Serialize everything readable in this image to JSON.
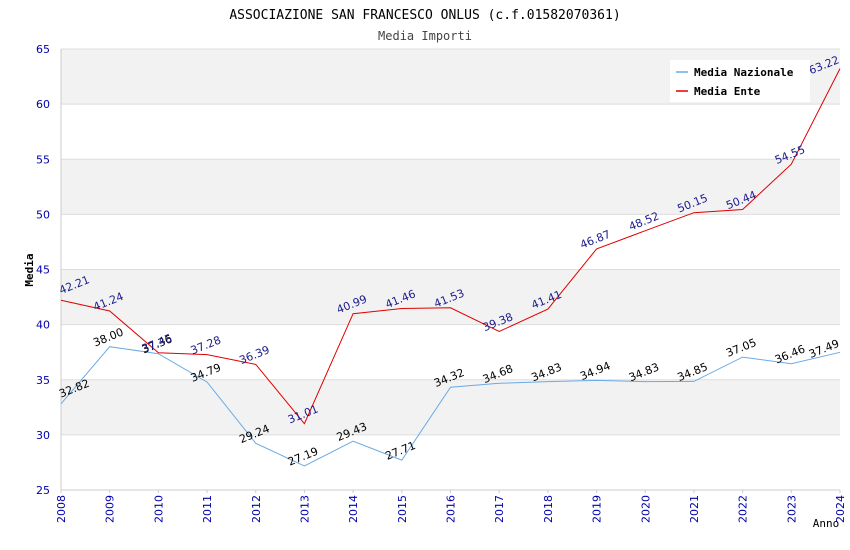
{
  "chart_data": {
    "type": "line",
    "title": "ASSOCIAZIONE SAN FRANCESCO ONLUS (c.f.01582070361)",
    "subtitle": "Media Importi",
    "ylabel": "Media",
    "xlabel": "Anno",
    "ylim": [
      25,
      65
    ],
    "yticks": [
      25,
      30,
      35,
      40,
      45,
      50,
      55,
      60,
      65
    ],
    "categories": [
      "2008",
      "2009",
      "2010",
      "2011",
      "2012",
      "2013",
      "2014",
      "2015",
      "2016",
      "2017",
      "2018",
      "2019",
      "2020",
      "2021",
      "2022",
      "2023",
      "2024"
    ],
    "legend_position": "top-right",
    "series": [
      {
        "name": "Media Nazionale",
        "color": "#6aaae6",
        "label_color": "#000000",
        "values": [
          32.82,
          38.0,
          37.36,
          34.79,
          29.24,
          27.19,
          29.43,
          27.71,
          34.32,
          34.68,
          34.83,
          34.94,
          34.83,
          34.85,
          37.05,
          36.46,
          37.49
        ],
        "labels": [
          "32.82",
          "38.00",
          "37.36",
          "34.79",
          "29.24",
          "27.19",
          "29.43",
          "27.71",
          "34.32",
          "34.68",
          "34.83",
          "34.94",
          "34.83",
          "34.85",
          "37.05",
          "36.46",
          "37.49"
        ]
      },
      {
        "name": "Media Ente",
        "color": "#e00000",
        "label_color": "#1a1a8c",
        "values": [
          42.21,
          41.24,
          37.45,
          37.28,
          36.39,
          31.01,
          40.99,
          41.46,
          41.53,
          39.38,
          41.41,
          46.87,
          48.52,
          50.15,
          50.44,
          54.55,
          63.22
        ],
        "labels": [
          "42.21",
          "41.24",
          "37.45",
          "37.28",
          "36.39",
          "31.01",
          "40.99",
          "41.46",
          "41.53",
          "39.38",
          "41.41",
          "46.87",
          "48.52",
          "50.15",
          "50.44",
          "54.55",
          "63.22"
        ]
      }
    ],
    "colors": {
      "band": "#f2f2f2",
      "grid": "#dddddd",
      "tick_text": "#0000aa",
      "title_text": "#000000",
      "subtitle_text": "#444444"
    }
  }
}
